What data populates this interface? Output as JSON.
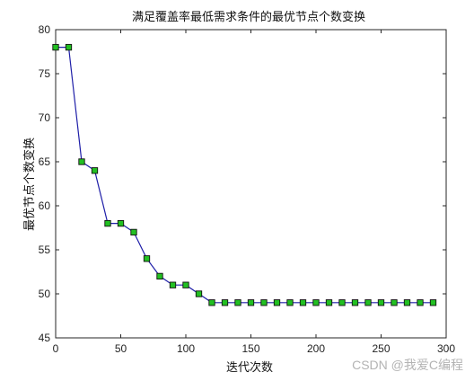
{
  "chart_data": {
    "type": "line",
    "title": "满足覆盖率最低需求条件的最优节点个数变换",
    "xlabel": "迭代次数",
    "ylabel": "最优节点个数变换",
    "xlim": [
      0,
      300
    ],
    "ylim": [
      45,
      80
    ],
    "xticks": [
      0,
      50,
      100,
      150,
      200,
      250,
      300
    ],
    "yticks": [
      45,
      50,
      55,
      60,
      65,
      70,
      75,
      80
    ],
    "grid": false,
    "series": [
      {
        "x": [
          0,
          10,
          20,
          30,
          40,
          50,
          60,
          70,
          80,
          90,
          100,
          110,
          120,
          130,
          140,
          150,
          160,
          170,
          180,
          190,
          200,
          210,
          220,
          230,
          240,
          250,
          260,
          270,
          280,
          290
        ],
        "values": [
          78,
          78,
          65,
          64,
          58,
          58,
          57,
          54,
          52,
          51,
          51,
          50,
          49,
          49,
          49,
          49,
          49,
          49,
          49,
          49,
          49,
          49,
          49,
          49,
          49,
          49,
          49,
          49,
          49,
          49
        ],
        "line_color": "#1f1fa8",
        "marker": "square",
        "marker_fill": "#22c022",
        "marker_edge": "#111111"
      }
    ]
  },
  "watermark": "CSDN @我爱C编程"
}
